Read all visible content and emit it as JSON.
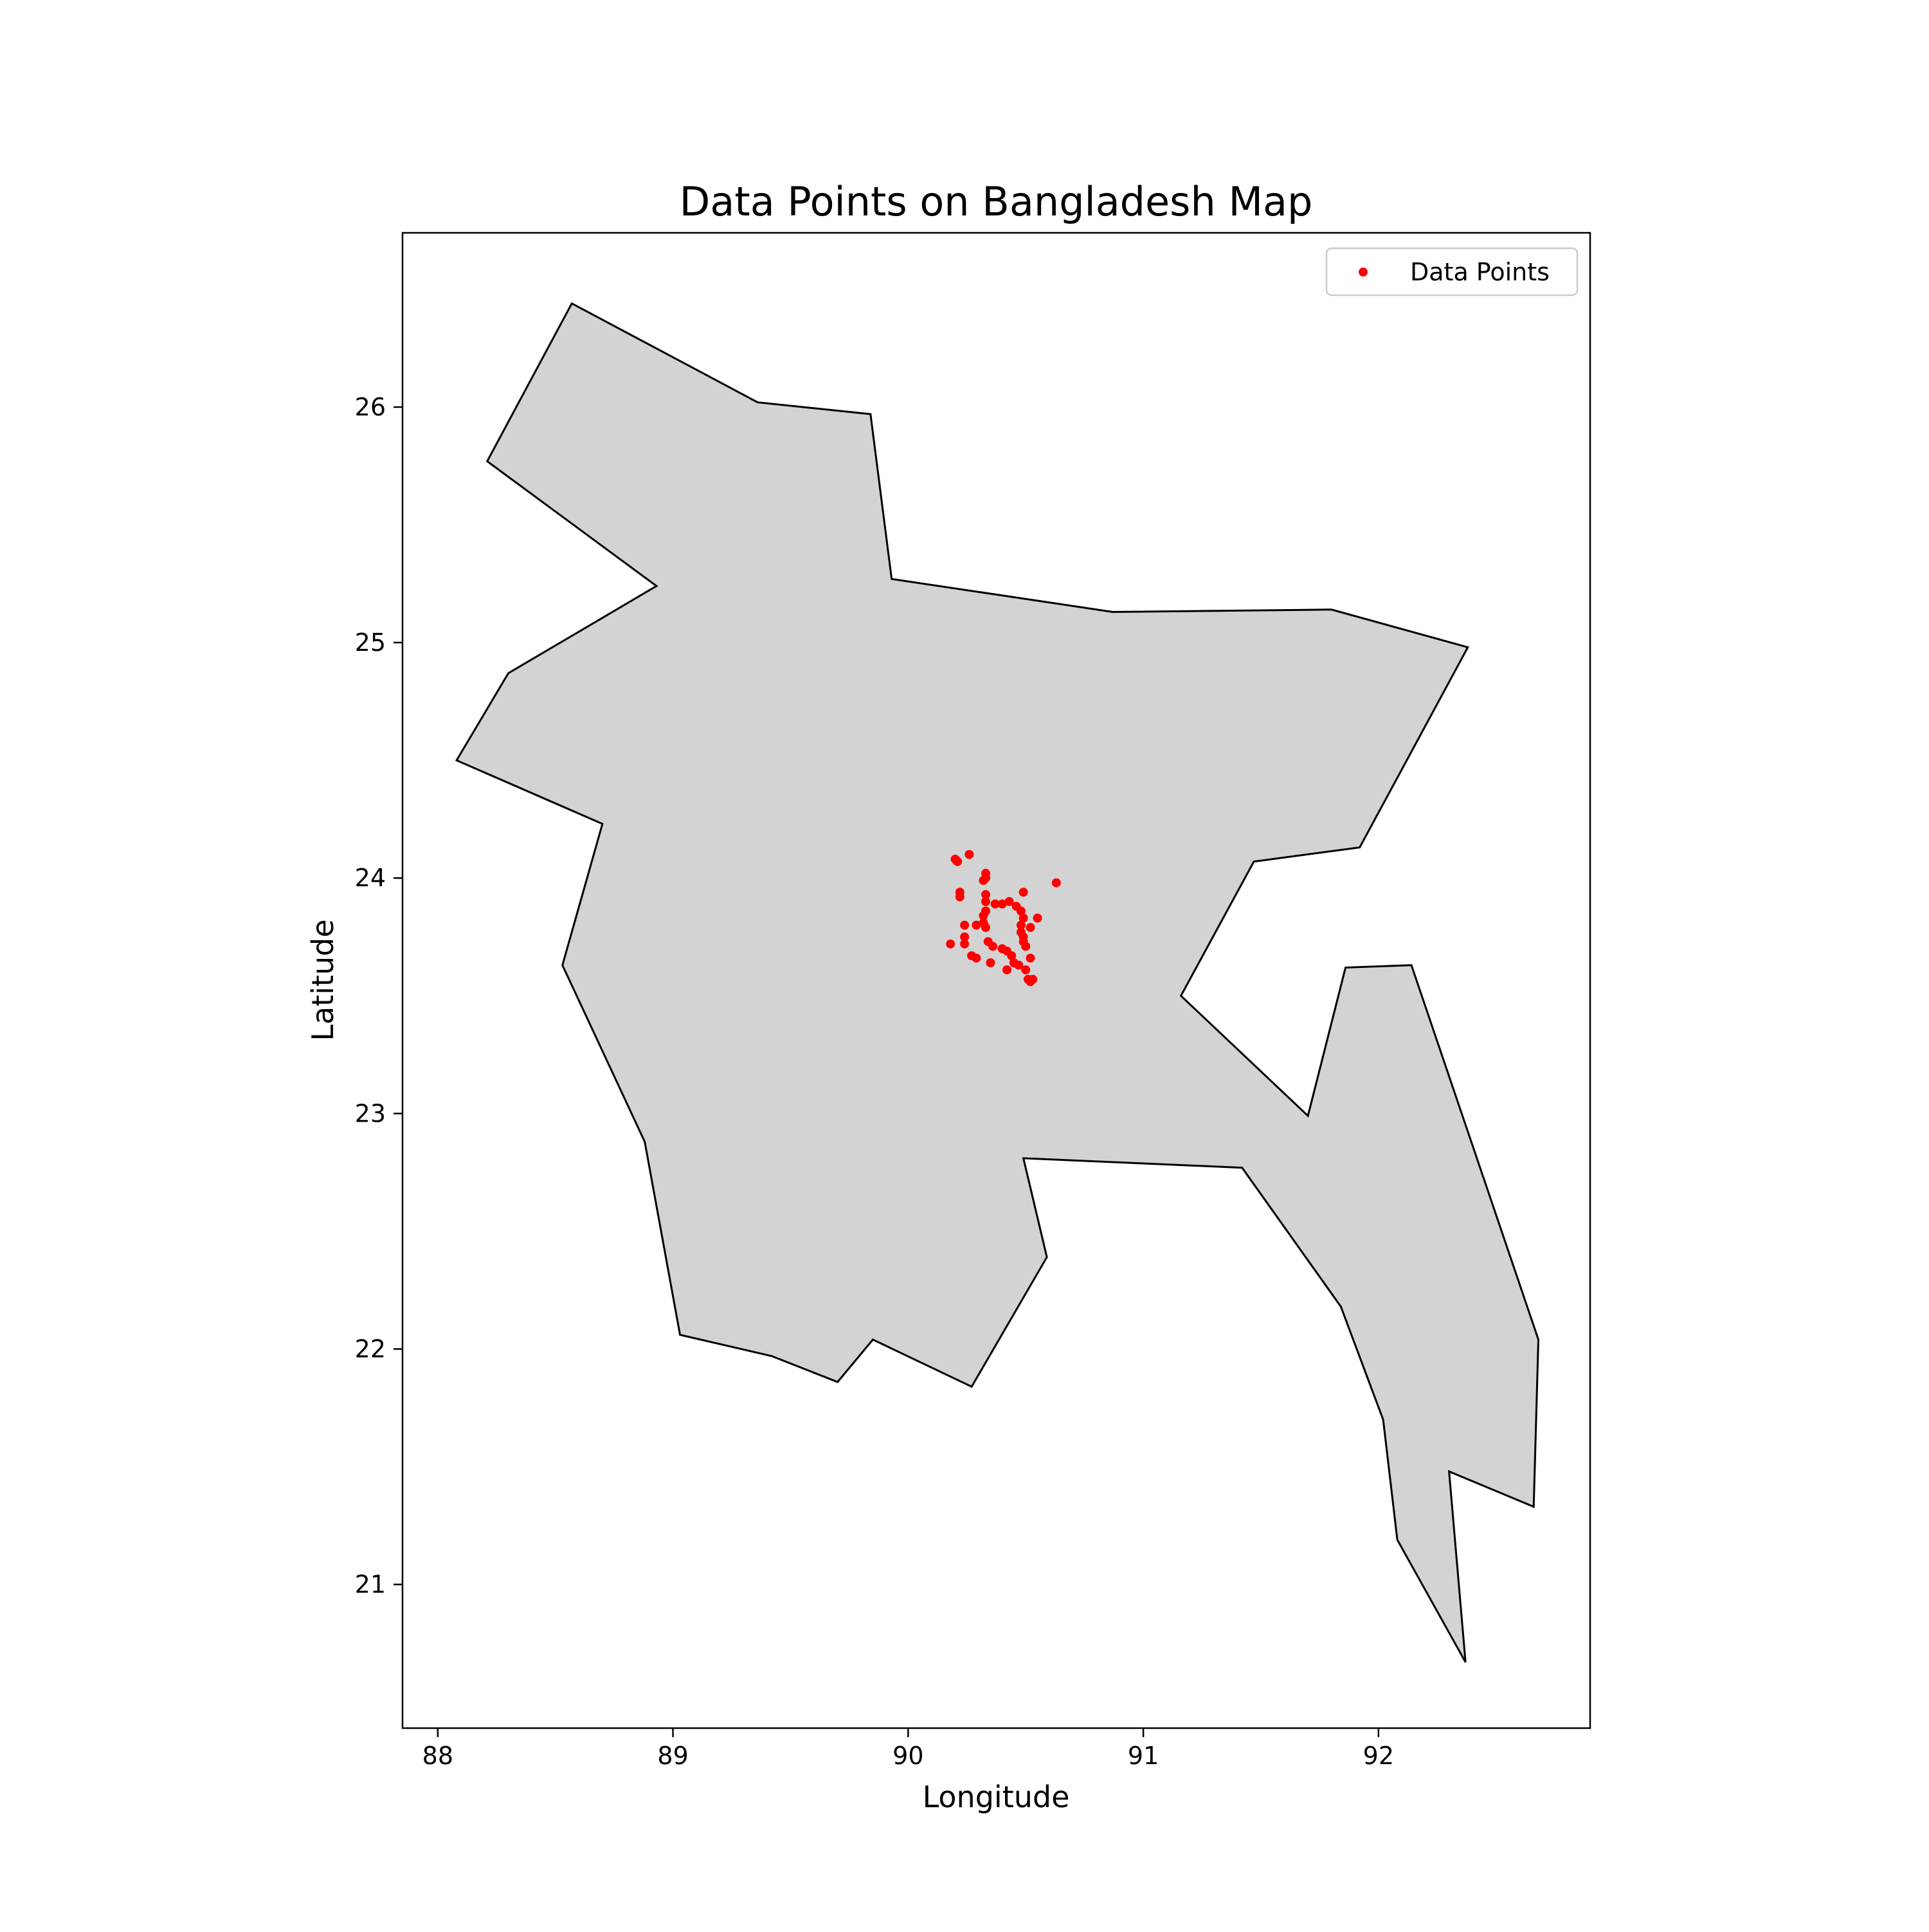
{
  "chart_data": {
    "type": "scatter",
    "title": "Data Points on Bangladesh Map",
    "xlabel": "Longitude",
    "ylabel": "Latitude",
    "xlim": [
      87.85,
      92.9
    ],
    "ylim": [
      20.39,
      26.74
    ],
    "xticks": [
      {
        "value": 88,
        "label": "88"
      },
      {
        "value": 89,
        "label": "89"
      },
      {
        "value": 90,
        "label": "90"
      },
      {
        "value": 91,
        "label": "91"
      },
      {
        "value": 92,
        "label": "92"
      }
    ],
    "yticks": [
      {
        "value": 21,
        "label": "21"
      },
      {
        "value": 22,
        "label": "22"
      },
      {
        "value": 23,
        "label": "23"
      },
      {
        "value": 24,
        "label": "24"
      },
      {
        "value": 25,
        "label": "25"
      },
      {
        "value": 26,
        "label": "26"
      }
    ],
    "grid": false,
    "legend": {
      "position": "top-right",
      "entries": [
        "Data Points"
      ]
    },
    "colors": {
      "points": "#ff0000",
      "map_fill": "#d3d3d3",
      "map_edge": "#000000",
      "axes": "#000000"
    },
    "boundary": [
      [
        88.57,
        26.44
      ],
      [
        89.36,
        26.02
      ],
      [
        89.84,
        25.97
      ],
      [
        89.93,
        25.27
      ],
      [
        90.87,
        25.13
      ],
      [
        91.8,
        25.14
      ],
      [
        92.38,
        24.98
      ],
      [
        91.92,
        24.13
      ],
      [
        91.47,
        24.07
      ],
      [
        91.16,
        23.5
      ],
      [
        91.7,
        22.99
      ],
      [
        91.86,
        23.62
      ],
      [
        92.14,
        23.63
      ],
      [
        92.68,
        22.04
      ],
      [
        92.66,
        21.33
      ],
      [
        92.3,
        21.48
      ],
      [
        92.37,
        20.67
      ],
      [
        92.08,
        21.19
      ],
      [
        92.02,
        21.7
      ],
      [
        91.84,
        22.18
      ],
      [
        91.42,
        22.77
      ],
      [
        90.49,
        22.81
      ],
      [
        90.59,
        22.39
      ],
      [
        90.27,
        21.84
      ],
      [
        89.85,
        22.04
      ],
      [
        89.7,
        21.86
      ],
      [
        89.42,
        21.97
      ],
      [
        89.03,
        22.06
      ],
      [
        88.88,
        22.88
      ],
      [
        88.53,
        23.63
      ],
      [
        88.7,
        24.23
      ],
      [
        88.08,
        24.5
      ],
      [
        88.3,
        24.87
      ],
      [
        88.93,
        25.24
      ],
      [
        88.21,
        25.77
      ]
    ],
    "series": [
      {
        "name": "Data Points",
        "points": [
          [
            90.2,
            24.08
          ],
          [
            90.21,
            24.07
          ],
          [
            90.26,
            24.1
          ],
          [
            90.33,
            24.02
          ],
          [
            90.33,
            24.0
          ],
          [
            90.32,
            23.99
          ],
          [
            90.63,
            23.98
          ],
          [
            90.22,
            23.94
          ],
          [
            90.22,
            23.92
          ],
          [
            90.33,
            23.93
          ],
          [
            90.49,
            23.94
          ],
          [
            90.33,
            23.9
          ],
          [
            90.37,
            23.89
          ],
          [
            90.4,
            23.89
          ],
          [
            90.43,
            23.9
          ],
          [
            90.46,
            23.88
          ],
          [
            90.48,
            23.86
          ],
          [
            90.33,
            23.86
          ],
          [
            90.32,
            23.84
          ],
          [
            90.49,
            23.83
          ],
          [
            90.55,
            23.83
          ],
          [
            90.32,
            23.81
          ],
          [
            90.24,
            23.8
          ],
          [
            90.29,
            23.8
          ],
          [
            90.33,
            23.79
          ],
          [
            90.48,
            23.8
          ],
          [
            90.52,
            23.79
          ],
          [
            90.24,
            23.75
          ],
          [
            90.48,
            23.77
          ],
          [
            90.49,
            23.75
          ],
          [
            90.18,
            23.72
          ],
          [
            90.24,
            23.72
          ],
          [
            90.34,
            23.73
          ],
          [
            90.36,
            23.71
          ],
          [
            90.4,
            23.7
          ],
          [
            90.42,
            23.69
          ],
          [
            90.49,
            23.73
          ],
          [
            90.5,
            23.71
          ],
          [
            90.44,
            23.67
          ],
          [
            90.27,
            23.67
          ],
          [
            90.29,
            23.66
          ],
          [
            90.35,
            23.64
          ],
          [
            90.45,
            23.64
          ],
          [
            90.47,
            23.63
          ],
          [
            90.52,
            23.66
          ],
          [
            90.5,
            23.61
          ],
          [
            90.42,
            23.61
          ],
          [
            90.51,
            23.57
          ],
          [
            90.52,
            23.56
          ],
          [
            90.53,
            23.57
          ]
        ]
      }
    ]
  }
}
